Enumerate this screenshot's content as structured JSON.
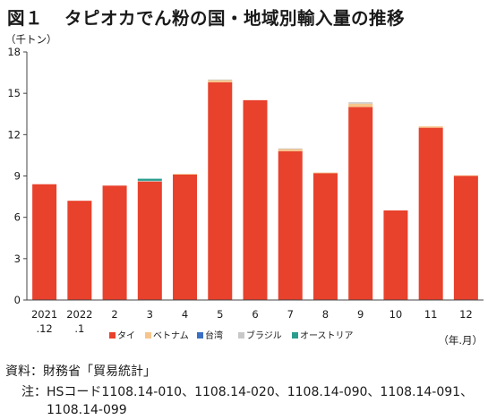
{
  "title": {
    "figure_label": "図１",
    "text": "タピオカでん粉の国・地域別輸入量の推移"
  },
  "chart_data": {
    "type": "bar",
    "stacked": true,
    "y_unit": "（千トン）",
    "x_unit": "（年.月）",
    "ylim": [
      0,
      18
    ],
    "yticks": [
      0,
      3,
      6,
      9,
      12,
      15,
      18
    ],
    "categories": [
      {
        "line1": "2021",
        "line2": ".12"
      },
      {
        "line1": "2022",
        "line2": ".1"
      },
      {
        "line1": "2",
        "line2": ""
      },
      {
        "line1": "3",
        "line2": ""
      },
      {
        "line1": "4",
        "line2": ""
      },
      {
        "line1": "5",
        "line2": ""
      },
      {
        "line1": "6",
        "line2": ""
      },
      {
        "line1": "7",
        "line2": ""
      },
      {
        "line1": "8",
        "line2": ""
      },
      {
        "line1": "9",
        "line2": ""
      },
      {
        "line1": "10",
        "line2": ""
      },
      {
        "line1": "11",
        "line2": ""
      },
      {
        "line1": "12",
        "line2": ""
      }
    ],
    "series": [
      {
        "name": "タイ",
        "color": "#e8412c",
        "values": [
          8.4,
          7.2,
          8.3,
          8.6,
          9.1,
          15.8,
          14.5,
          10.8,
          9.2,
          14.0,
          6.5,
          12.5,
          9.0
        ]
      },
      {
        "name": "ベトナム",
        "color": "#f7c58b",
        "values": [
          0.0,
          0.0,
          0.0,
          0.0,
          0.05,
          0.15,
          0.0,
          0.15,
          0.05,
          0.25,
          0.0,
          0.1,
          0.05
        ]
      },
      {
        "name": "台湾",
        "color": "#3a6fc4",
        "values": [
          0.0,
          0.0,
          0.0,
          0.0,
          0.0,
          0.0,
          0.0,
          0.0,
          0.0,
          0.0,
          0.0,
          0.0,
          0.0
        ]
      },
      {
        "name": "ブラジル",
        "color": "#c8c8c8",
        "values": [
          0.0,
          0.0,
          0.0,
          0.05,
          0.0,
          0.05,
          0.0,
          0.05,
          0.0,
          0.1,
          0.0,
          0.0,
          0.0
        ]
      },
      {
        "name": "オーストリア",
        "color": "#2a9d8f",
        "values": [
          0.0,
          0.0,
          0.0,
          0.15,
          0.0,
          0.0,
          0.0,
          0.0,
          0.0,
          0.0,
          0.0,
          0.0,
          0.0
        ]
      }
    ],
    "grid": false,
    "legend_position": "bottom"
  },
  "source": {
    "label": "資料：",
    "text": "財務省「貿易統計」"
  },
  "note": {
    "label": "注：",
    "text": "HSコード1108.14-010、1108.14-020、1108.14-090、1108.14-091、1108.14-099"
  }
}
